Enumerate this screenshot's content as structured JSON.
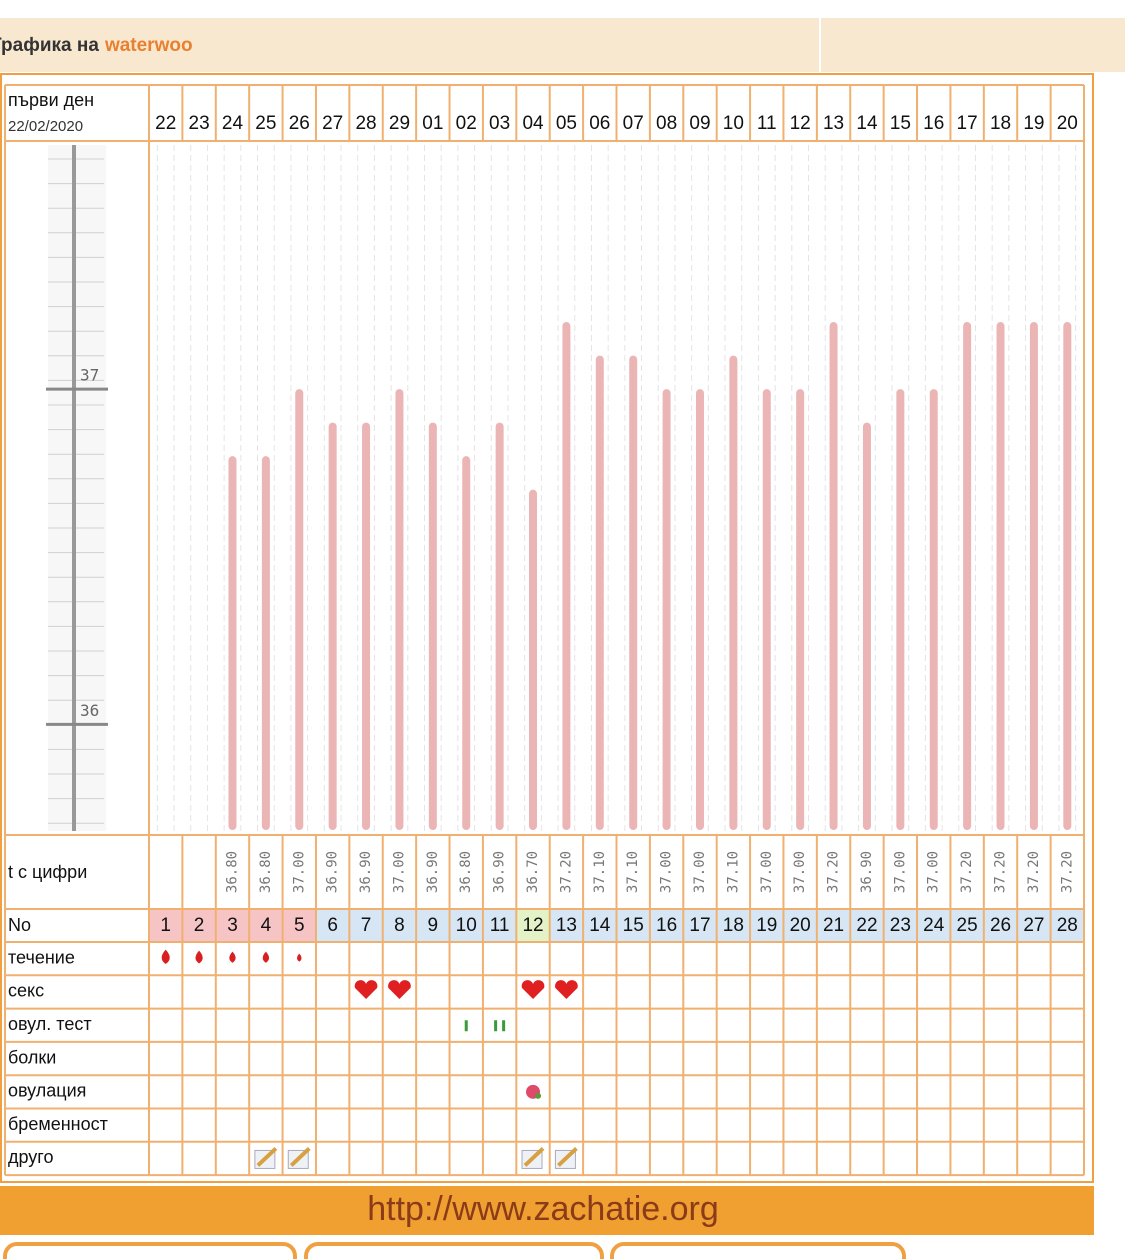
{
  "header": {
    "title_prefix": "Графика на",
    "user": "waterwoo"
  },
  "table": {
    "first_day_label": "първи ден",
    "first_day": "22/02/2020",
    "days": [
      "22",
      "23",
      "24",
      "25",
      "26",
      "27",
      "28",
      "29",
      "01",
      "02",
      "03",
      "04",
      "05",
      "06",
      "07",
      "08",
      "09",
      "10",
      "11",
      "12",
      "13",
      "14",
      "15",
      "16",
      "17",
      "18",
      "19",
      "20"
    ],
    "scale": {
      "ylim": [
        35.67,
        37.74
      ],
      "yticks": [
        36,
        37
      ]
    },
    "temperatures": [
      null,
      null,
      36.8,
      36.8,
      37.0,
      36.9,
      36.9,
      37.0,
      36.9,
      36.8,
      36.9,
      36.7,
      37.2,
      37.1,
      37.1,
      37.0,
      37.0,
      37.1,
      37.0,
      37.0,
      37.2,
      36.9,
      37.0,
      37.0,
      37.2,
      37.2,
      37.2,
      37.2
    ],
    "temperature_labels": [
      null,
      null,
      "36.80",
      "36.80",
      "37.00",
      "36.90",
      "36.90",
      "37.00",
      "36.90",
      "36.80",
      "36.90",
      "36.70",
      "37.20",
      "37.10",
      "37.10",
      "37.00",
      "37.00",
      "37.10",
      "37.00",
      "37.00",
      "37.20",
      "36.90",
      "37.00",
      "37.00",
      "37.20",
      "37.20",
      "37.20",
      "37.20"
    ],
    "temperature_row_label": "t с цифри",
    "number_row_label": "No",
    "numbers": [
      1,
      2,
      3,
      4,
      5,
      6,
      7,
      8,
      9,
      10,
      11,
      12,
      13,
      14,
      15,
      16,
      17,
      18,
      19,
      20,
      21,
      22,
      23,
      24,
      25,
      26,
      27,
      28
    ],
    "row_labels": [
      "течение",
      "секс",
      "овул. тест",
      "болки",
      "овулация",
      "бременност",
      "друго"
    ]
  },
  "footer": {
    "url": "http://www.zachatie.org"
  }
}
